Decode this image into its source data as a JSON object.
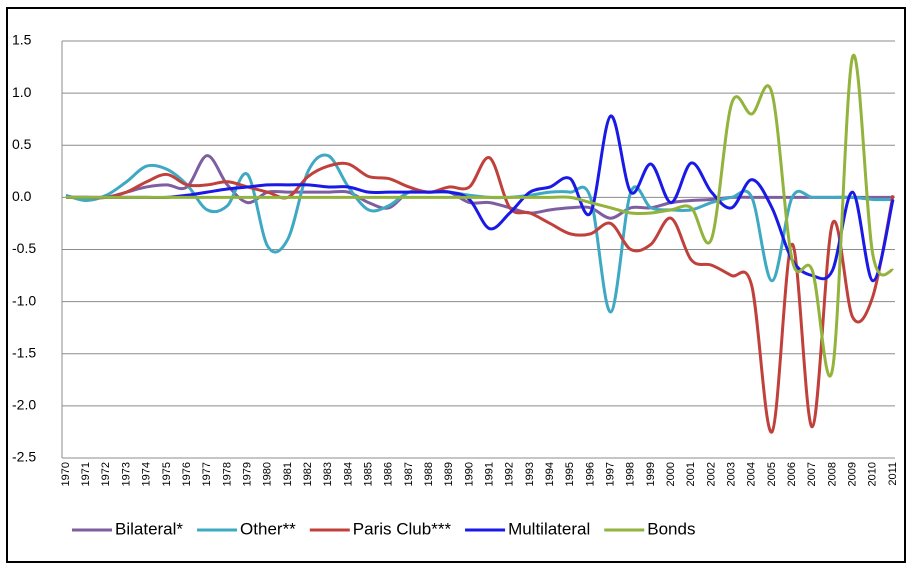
{
  "chart_data": {
    "type": "line",
    "categories": [
      "1970",
      "1971",
      "1972",
      "1973",
      "1974",
      "1975",
      "1976",
      "1977",
      "1978",
      "1979",
      "1980",
      "1981",
      "1982",
      "1983",
      "1984",
      "1985",
      "1986",
      "1987",
      "1988",
      "1989",
      "1990",
      "1991",
      "1992",
      "1993",
      "1994",
      "1995",
      "1996",
      "1997",
      "1998",
      "1999",
      "2000",
      "2001",
      "2002",
      "2003",
      "2004",
      "2005",
      "2006",
      "2007",
      "2008",
      "2009",
      "2010",
      "2011"
    ],
    "series": [
      {
        "name": "Bilateral*",
        "color": "#7e5ea1",
        "values": [
          0,
          0,
          0,
          0.05,
          0.1,
          0.12,
          0.1,
          0.4,
          0.12,
          -0.05,
          0.05,
          0.05,
          0.05,
          0.05,
          0.05,
          -0.05,
          -0.1,
          0.05,
          0.05,
          0.05,
          -0.05,
          -0.05,
          -0.1,
          -0.15,
          -0.12,
          -0.1,
          -0.1,
          -0.2,
          -0.1,
          -0.1,
          -0.05,
          -0.03,
          -0.02,
          0,
          0,
          0,
          0,
          0,
          0,
          0,
          0,
          0
        ]
      },
      {
        "name": "Other**",
        "color": "#3fa9c4",
        "values": [
          0.02,
          -0.03,
          0.02,
          0.15,
          0.3,
          0.27,
          0.12,
          -0.12,
          -0.08,
          0.22,
          -0.47,
          -0.4,
          0.25,
          0.4,
          0.1,
          -0.12,
          -0.08,
          0.05,
          0.05,
          0.05,
          0.02,
          0,
          0,
          0.02,
          0.05,
          0.05,
          0,
          -1.1,
          0.05,
          -0.1,
          -0.12,
          -0.12,
          -0.05,
          0,
          0,
          -0.8,
          0,
          0,
          0,
          0,
          -0.02,
          -0.02
        ]
      },
      {
        "name": "Paris Club***",
        "color": "#c0413c",
        "values": [
          0,
          0,
          0,
          0.05,
          0.15,
          0.22,
          0.12,
          0.12,
          0.15,
          0.1,
          0.05,
          0,
          0.2,
          0.3,
          0.32,
          0.2,
          0.18,
          0.1,
          0.05,
          0.1,
          0.1,
          0.38,
          -0.1,
          -0.15,
          -0.25,
          -0.35,
          -0.35,
          -0.25,
          -0.5,
          -0.45,
          -0.2,
          -0.6,
          -0.65,
          -0.75,
          -0.85,
          -2.25,
          -0.45,
          -2.2,
          -0.25,
          -1.15,
          -0.95,
          0.02
        ]
      },
      {
        "name": "Multilateral",
        "color": "#1a1ae6",
        "values": [
          0,
          0,
          0,
          0,
          0,
          0,
          0.02,
          0.05,
          0.08,
          0.1,
          0.12,
          0.12,
          0.12,
          0.1,
          0.1,
          0.05,
          0.05,
          0.05,
          0.05,
          0.05,
          -0.02,
          -0.3,
          -0.15,
          0.05,
          0.1,
          0.18,
          -0.15,
          0.78,
          0.05,
          0.32,
          -0.05,
          0.33,
          0.05,
          -0.1,
          0.17,
          -0.1,
          -0.6,
          -0.75,
          -0.7,
          0.05,
          -0.8,
          -0.02
        ]
      },
      {
        "name": "Bonds",
        "color": "#92b33c",
        "values": [
          0,
          0,
          0,
          0,
          0,
          0,
          0,
          0,
          0,
          0,
          0,
          0,
          0,
          0,
          0,
          0,
          0,
          0,
          0,
          0,
          0,
          0,
          0,
          0,
          0,
          0,
          -0.05,
          -0.1,
          -0.15,
          -0.15,
          -0.12,
          -0.1,
          -0.4,
          0.9,
          0.8,
          1.0,
          -0.6,
          -0.7,
          -1.65,
          1.35,
          -0.55,
          -0.7
        ]
      }
    ],
    "ylim": [
      -2.5,
      1.5
    ],
    "yticks": [
      {
        "value": 1.5,
        "label": "1.5"
      },
      {
        "value": 1,
        "label": "1.0"
      },
      {
        "value": 0.5,
        "label": "0.5"
      },
      {
        "value": 0,
        "label": "0.0"
      },
      {
        "value": -0.5,
        "label": "-0.5"
      },
      {
        "value": -1,
        "label": "-1.0"
      },
      {
        "value": -1.5,
        "label": "-1.5"
      },
      {
        "value": -2,
        "label": "-2.0"
      },
      {
        "value": -2.5,
        "label": "-2.5"
      }
    ],
    "grid": true
  }
}
